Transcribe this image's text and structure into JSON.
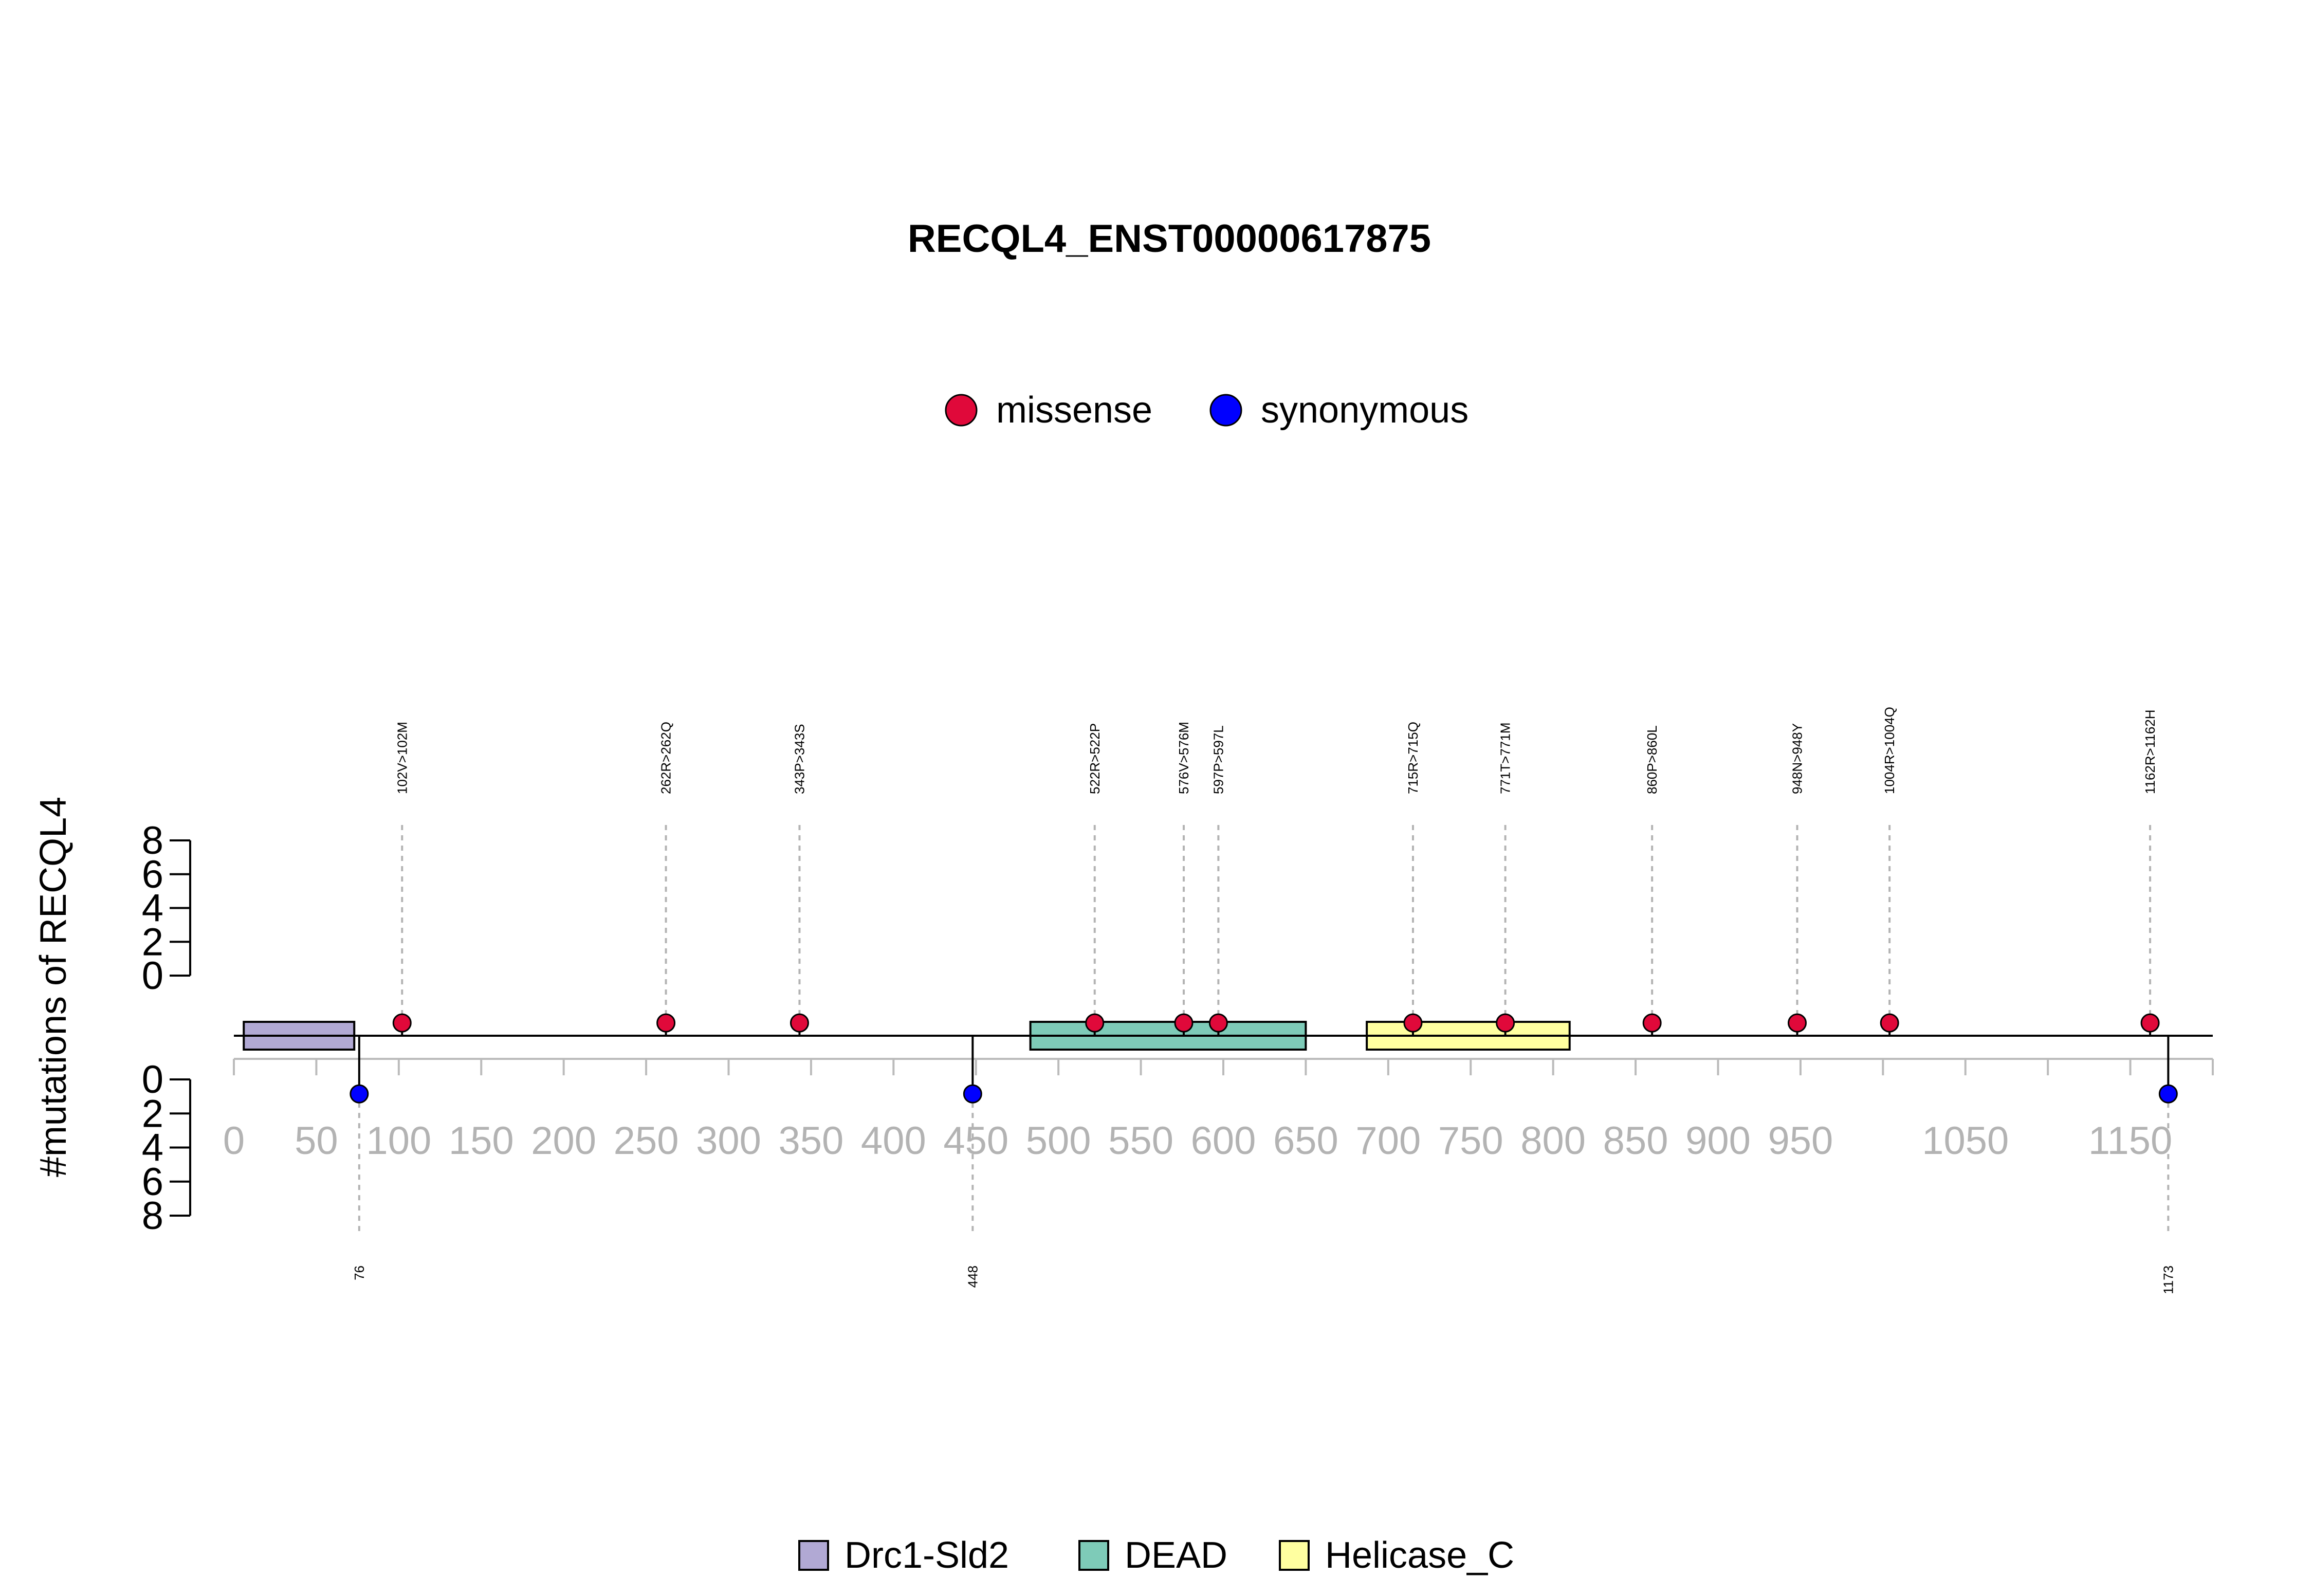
{
  "chart_data": {
    "type": "lollipop",
    "title": "RECQL4_ENST00000617875",
    "ylabel": "#mutations of RECQL4",
    "xlim": [
      0,
      1200
    ],
    "ylim": [
      0,
      8
    ],
    "yticks": [
      0,
      2,
      4,
      6,
      8
    ],
    "xticks": [
      0,
      50,
      100,
      150,
      200,
      250,
      300,
      350,
      400,
      450,
      500,
      550,
      600,
      650,
      700,
      750,
      800,
      850,
      900,
      950,
      1000,
      1050,
      1100,
      1150,
      1200
    ],
    "xtick_labels": [
      {
        "pos": 0,
        "label": "0"
      },
      {
        "pos": 50,
        "label": "50"
      },
      {
        "pos": 100,
        "label": "100"
      },
      {
        "pos": 150,
        "label": "150"
      },
      {
        "pos": 200,
        "label": "200"
      },
      {
        "pos": 250,
        "label": "250"
      },
      {
        "pos": 300,
        "label": "300"
      },
      {
        "pos": 350,
        "label": "350"
      },
      {
        "pos": 400,
        "label": "400"
      },
      {
        "pos": 450,
        "label": "450"
      },
      {
        "pos": 500,
        "label": "500"
      },
      {
        "pos": 550,
        "label": "550"
      },
      {
        "pos": 600,
        "label": "600"
      },
      {
        "pos": 650,
        "label": "650"
      },
      {
        "pos": 700,
        "label": "700"
      },
      {
        "pos": 750,
        "label": "750"
      },
      {
        "pos": 800,
        "label": "800"
      },
      {
        "pos": 850,
        "label": "850"
      },
      {
        "pos": 900,
        "label": "900"
      },
      {
        "pos": 950,
        "label": "950"
      },
      {
        "pos": 1050,
        "label": "1050"
      },
      {
        "pos": 1150,
        "label": "1150"
      }
    ],
    "legend_top": {
      "placement": "top-center",
      "entries": [
        {
          "name": "missense",
          "color": "#E0093A"
        },
        {
          "name": "synonymous",
          "color": "#0000FF"
        }
      ]
    },
    "domains": [
      {
        "name": "Drc1-Sld2",
        "start": 6,
        "end": 73,
        "color": "#B1A9D4"
      },
      {
        "name": "DEAD",
        "start": 483,
        "end": 650,
        "color": "#7ECBB8"
      },
      {
        "name": "Helicase_C",
        "start": 687,
        "end": 810,
        "color": "#FFFFA0"
      }
    ],
    "missense": [
      {
        "pos": 102,
        "label": "102V>102M",
        "count": 1
      },
      {
        "pos": 262,
        "label": "262R>262Q",
        "count": 1
      },
      {
        "pos": 343,
        "label": "343P>343S",
        "count": 1
      },
      {
        "pos": 522,
        "label": "522R>522P",
        "count": 1
      },
      {
        "pos": 576,
        "label": "576V>576M",
        "count": 1
      },
      {
        "pos": 597,
        "label": "597P>597L",
        "count": 1
      },
      {
        "pos": 715,
        "label": "715R>715Q",
        "count": 1
      },
      {
        "pos": 771,
        "label": "771T>771M",
        "count": 1
      },
      {
        "pos": 860,
        "label": "860P>860L",
        "count": 1
      },
      {
        "pos": 948,
        "label": "948N>948Y",
        "count": 1
      },
      {
        "pos": 1004,
        "label": "1004R>1004Q",
        "count": 1
      },
      {
        "pos": 1162,
        "label": "1162R>1162H",
        "count": 1
      }
    ],
    "synonymous": [
      {
        "pos": 76,
        "label": "76",
        "count": 1
      },
      {
        "pos": 448,
        "label": "448",
        "count": 1
      },
      {
        "pos": 1173,
        "label": "1173",
        "count": 1
      }
    ],
    "legend_bottom": {
      "placement": "bottom-center",
      "entries": [
        {
          "name": "Drc1-Sld2",
          "color": "#B1A9D4"
        },
        {
          "name": "DEAD",
          "color": "#7ECBB8"
        },
        {
          "name": "Helicase_C",
          "color": "#FFFFA0"
        }
      ]
    }
  }
}
